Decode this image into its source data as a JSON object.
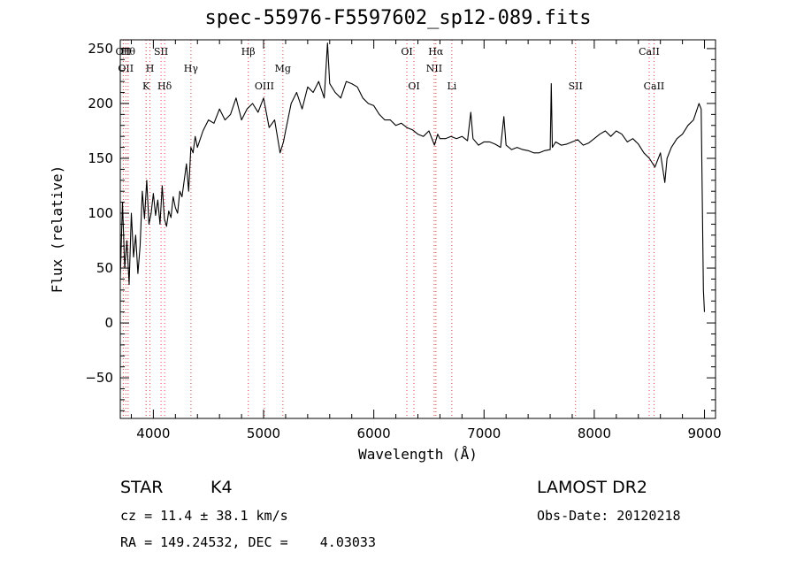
{
  "title": "spec-55976-F5597602_sp12-089.fits",
  "info": {
    "object_class": "STAR",
    "subclass": "K4",
    "survey": "LAMOST DR2",
    "cz": "cz = 11.4 ± 38.1 km/s",
    "obs_date": "Obs-Date: 20120218",
    "radec": "RA = 149.24532, DEC =    4.03033"
  },
  "chart_data": {
    "type": "line",
    "title": "spec-55976-F5597602_sp12-089.fits",
    "xlabel": "Wavelength (Å)",
    "ylabel": "Flux (relative)",
    "xlim": [
      3700,
      9100
    ],
    "ylim": [
      -87,
      258
    ],
    "x_ticks": [
      4000,
      5000,
      6000,
      7000,
      8000,
      9000
    ],
    "y_ticks": [
      -50,
      0,
      50,
      100,
      150,
      200,
      250
    ],
    "grid": false,
    "series": [
      {
        "x": [
          3700,
          3720,
          3740,
          3760,
          3780,
          3800,
          3820,
          3840,
          3860,
          3880,
          3900,
          3920,
          3940,
          3960,
          3980,
          4000,
          4020,
          4040,
          4060,
          4080,
          4100,
          4120,
          4140,
          4160,
          4180,
          4200,
          4220,
          4240,
          4260,
          4280,
          4300,
          4320,
          4340,
          4360,
          4380,
          4400,
          4450,
          4500,
          4550,
          4600,
          4650,
          4700,
          4750,
          4800,
          4850,
          4900,
          4950,
          5000,
          5050,
          5100,
          5150,
          5180,
          5200,
          5250,
          5300,
          5350,
          5400,
          5450,
          5500,
          5550,
          5580,
          5600,
          5650,
          5700,
          5750,
          5800,
          5850,
          5900,
          5950,
          6000,
          6050,
          6100,
          6150,
          6200,
          6250,
          6300,
          6350,
          6400,
          6450,
          6500,
          6550,
          6580,
          6600,
          6650,
          6700,
          6750,
          6800,
          6850,
          6880,
          6900,
          6950,
          7000,
          7050,
          7100,
          7150,
          7180,
          7200,
          7250,
          7300,
          7350,
          7400,
          7450,
          7500,
          7550,
          7600,
          7610,
          7620,
          7650,
          7700,
          7750,
          7800,
          7850,
          7900,
          7950,
          8000,
          8050,
          8100,
          8150,
          8200,
          8250,
          8300,
          8350,
          8400,
          8450,
          8500,
          8550,
          8600,
          8640,
          8660,
          8700,
          8750,
          8800,
          8850,
          8900,
          8950,
          8970,
          8990,
          9000
        ],
        "y": [
          40,
          110,
          50,
          75,
          35,
          100,
          60,
          80,
          45,
          70,
          120,
          95,
          130,
          90,
          100,
          118,
          98,
          112,
          90,
          125,
          95,
          88,
          102,
          96,
          115,
          105,
          100,
          120,
          115,
          130,
          145,
          120,
          160,
          155,
          170,
          160,
          175,
          185,
          182,
          195,
          185,
          190,
          205,
          185,
          195,
          200,
          192,
          205,
          178,
          185,
          155,
          165,
          175,
          200,
          210,
          195,
          215,
          210,
          220,
          205,
          255,
          218,
          210,
          205,
          220,
          218,
          215,
          205,
          200,
          198,
          190,
          185,
          185,
          180,
          182,
          178,
          176,
          172,
          170,
          175,
          162,
          172,
          168,
          168,
          170,
          168,
          170,
          166,
          192,
          168,
          162,
          165,
          165,
          163,
          160,
          188,
          162,
          158,
          160,
          158,
          157,
          155,
          155,
          157,
          158,
          218,
          160,
          165,
          162,
          163,
          165,
          167,
          162,
          164,
          168,
          172,
          175,
          170,
          175,
          172,
          165,
          168,
          163,
          155,
          150,
          142,
          155,
          128,
          150,
          160,
          168,
          172,
          180,
          185,
          200,
          195,
          30,
          10
        ],
        "color": "#000000"
      }
    ],
    "line_markers": [
      {
        "x": 3727,
        "label": "OII"
      },
      {
        "x": 3750,
        "label": "OII"
      },
      {
        "x": 3771,
        "label": "Hθ"
      },
      {
        "x": 3934,
        "label": "K"
      },
      {
        "x": 3969,
        "label": "H"
      },
      {
        "x": 4070,
        "label": "SII"
      },
      {
        "x": 4102,
        "label": "Hδ"
      },
      {
        "x": 4341,
        "label": "Hγ"
      },
      {
        "x": 4861,
        "label": "Hβ"
      },
      {
        "x": 5007,
        "label": "OIII"
      },
      {
        "x": 5175,
        "label": "Mg"
      },
      {
        "x": 6300,
        "label": "OI"
      },
      {
        "x": 6364,
        "label": "OI"
      },
      {
        "x": 6548,
        "label": "NII"
      },
      {
        "x": 6563,
        "label": "Hα"
      },
      {
        "x": 6708,
        "label": "Li"
      },
      {
        "x": 7830,
        "label": "SII"
      },
      {
        "x": 8498,
        "label": "CaII"
      },
      {
        "x": 8542,
        "label": "CaII"
      }
    ]
  }
}
